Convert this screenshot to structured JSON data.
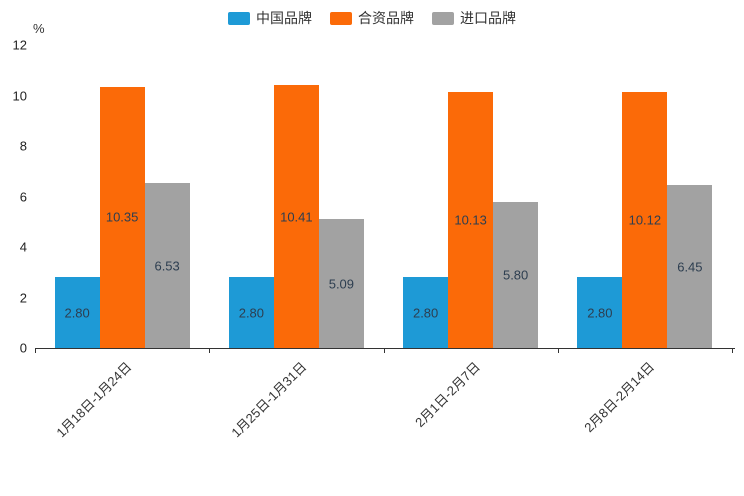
{
  "chart_data": {
    "type": "bar",
    "title": "",
    "xlabel": "",
    "ylabel": "%",
    "ylim": [
      0,
      12
    ],
    "yticks": [
      0,
      2,
      4,
      6,
      8,
      10,
      12
    ],
    "grid": false,
    "legend_position": "top",
    "categories": [
      "1月18日-1月24日",
      "1月25日-1月31日",
      "2月1日-2月7日",
      "2月8日-2月14日"
    ],
    "series": [
      {
        "key": "china-brand",
        "name": "中国品牌",
        "color": "#1E9AD6",
        "values": [
          2.8,
          2.8,
          2.8,
          2.8
        ]
      },
      {
        "key": "joint-venture-brand",
        "name": "合资品牌",
        "color": "#FB6A08",
        "values": [
          10.35,
          10.41,
          10.13,
          10.12
        ]
      },
      {
        "key": "import-brand",
        "name": "进口品牌",
        "color": "#A2A2A2",
        "values": [
          6.53,
          5.09,
          5.8,
          6.45
        ]
      }
    ],
    "value_label_color": "#2D3E50",
    "axis_color": "#333333",
    "text_color": "#333333"
  }
}
